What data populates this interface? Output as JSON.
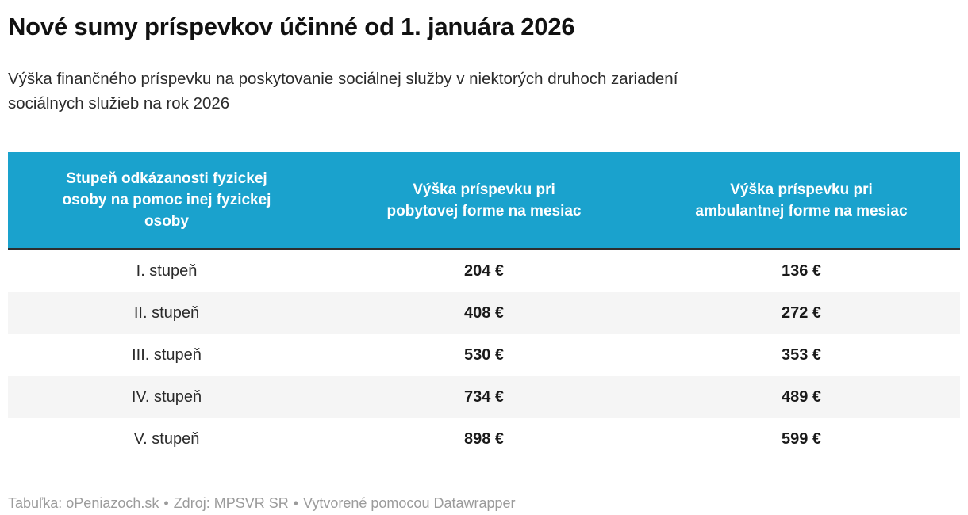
{
  "header": {
    "title": "Nové sumy príspevkov účinné od 1. januára 2026",
    "subtitle": "Výška finančného príspevku na poskytovanie sociálnej služby v niektorých druhoch zariadení\nsociálnych služieb na rok 2026"
  },
  "table": {
    "columns": [
      {
        "label": "Stupeň odkázanosti fyzickej\nosoby na pomoc inej fyzickej\nosoby"
      },
      {
        "label": "Výška príspevku pri\npobytovej forme na mesiac"
      },
      {
        "label": "Výška príspevku pri\nambulantnej forme na mesiac"
      }
    ],
    "rows": [
      {
        "level": "I. stupeň",
        "residential": "204 €",
        "ambulatory": "136 €"
      },
      {
        "level": "II. stupeň",
        "residential": "408 €",
        "ambulatory": "272 €"
      },
      {
        "level": "III. stupeň",
        "residential": "530 €",
        "ambulatory": "353 €"
      },
      {
        "level": "IV. stupeň",
        "residential": "734 €",
        "ambulatory": "489 €"
      },
      {
        "level": "V. stupeň",
        "residential": "898 €",
        "ambulatory": "599 €"
      }
    ]
  },
  "footer": {
    "credit": "Tabuľka: oPeniazoch.sk",
    "separator": "•",
    "source": "Zdroj: MPSVR SR",
    "created_with": "Vytvorené pomocou Datawrapper"
  },
  "colors": {
    "header_bg": "#1aa2cd",
    "header_text": "#ffffff",
    "header_bottom_border": "#2e2e2e",
    "zebra_row_bg": "#f5f5f5",
    "row_separator": "#e9e9e9",
    "title_text": "#111111",
    "body_text": "#2b2b2b",
    "value_text": "#1a1a1a",
    "footer_text": "#9b9b9b"
  },
  "chart_data": {
    "type": "table",
    "title": "Nové sumy príspevkov účinné od 1. januára 2026",
    "subtitle": "Výška finančného príspevku na poskytovanie sociálnej služby v niektorých druhoch zariadení sociálnych služieb na rok 2026",
    "columns": [
      "Stupeň odkázanosti fyzickej osoby na pomoc inej fyzickej osoby",
      "Výška príspevku pri pobytovej forme na mesiac",
      "Výška príspevku pri ambulantnej forme na mesiac"
    ],
    "categories": [
      "I. stupeň",
      "II. stupeň",
      "III. stupeň",
      "IV. stupeň",
      "V. stupeň"
    ],
    "series": [
      {
        "name": "Výška príspevku pri pobytovej forme na mesiac",
        "unit": "€",
        "values": [
          204,
          408,
          530,
          734,
          898
        ]
      },
      {
        "name": "Výška príspevku pri ambulantnej forme na mesiac",
        "unit": "€",
        "values": [
          136,
          272,
          353,
          489,
          599
        ]
      }
    ],
    "layout": {
      "zebra_striping": true,
      "header_fill": "#1aa2cd",
      "alignment": "center"
    }
  }
}
